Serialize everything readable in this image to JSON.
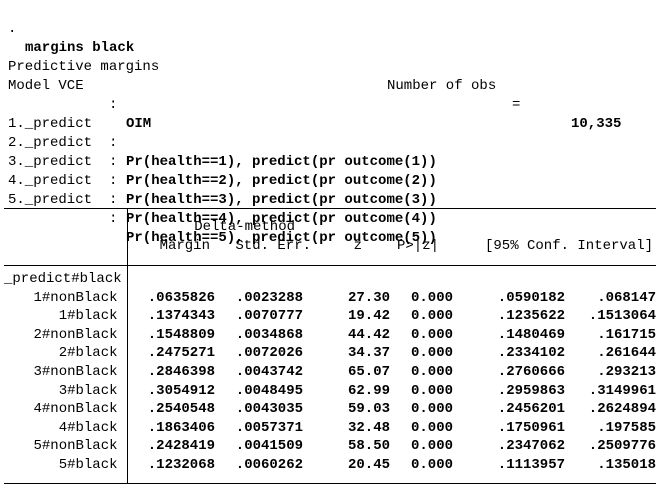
{
  "command": {
    "prompt": ".",
    "text": "margins black"
  },
  "header": {
    "title": "Predictive margins",
    "obs_label": "Number of obs",
    "equals": "=",
    "obs_value": "10,335",
    "vce_label": "Model VCE",
    "colon": ":",
    "vce_value": "OIM"
  },
  "predict_lines": [
    {
      "label": "1._predict",
      "colon": ":",
      "value": "Pr(health==1), predict(pr outcome(1))"
    },
    {
      "label": "2._predict",
      "colon": ":",
      "value": "Pr(health==2), predict(pr outcome(2))"
    },
    {
      "label": "3._predict",
      "colon": ":",
      "value": "Pr(health==3), predict(pr outcome(3))"
    },
    {
      "label": "4._predict",
      "colon": ":",
      "value": "Pr(health==4), predict(pr outcome(4))"
    },
    {
      "label": "5._predict",
      "colon": ":",
      "value": "Pr(health==5), predict(pr outcome(5))"
    }
  ],
  "table": {
    "group_header": "Delta-method",
    "columns": [
      "Margin",
      "Std. Err.",
      "z",
      "P>|z|",
      "[95% Conf. Interval]"
    ],
    "row_group_label": "_predict#black",
    "rows": [
      {
        "label": "1#nonBlack",
        "margin": ".0635826",
        "std_err": ".0023288",
        "z": "27.30",
        "p": "0.000",
        "ci_low": ".0590182",
        "ci_high": ".068147"
      },
      {
        "label": "1#black",
        "margin": ".1374343",
        "std_err": ".0070777",
        "z": "19.42",
        "p": "0.000",
        "ci_low": ".1235622",
        "ci_high": ".1513064"
      },
      {
        "label": "2#nonBlack",
        "margin": ".1548809",
        "std_err": ".0034868",
        "z": "44.42",
        "p": "0.000",
        "ci_low": ".1480469",
        "ci_high": ".161715"
      },
      {
        "label": "2#black",
        "margin": ".2475271",
        "std_err": ".0072026",
        "z": "34.37",
        "p": "0.000",
        "ci_low": ".2334102",
        "ci_high": ".261644"
      },
      {
        "label": "3#nonBlack",
        "margin": ".2846398",
        "std_err": ".0043742",
        "z": "65.07",
        "p": "0.000",
        "ci_low": ".2760666",
        "ci_high": ".293213"
      },
      {
        "label": "3#black",
        "margin": ".3054912",
        "std_err": ".0048495",
        "z": "62.99",
        "p": "0.000",
        "ci_low": ".2959863",
        "ci_high": ".3149961"
      },
      {
        "label": "4#nonBlack",
        "margin": ".2540548",
        "std_err": ".0043035",
        "z": "59.03",
        "p": "0.000",
        "ci_low": ".2456201",
        "ci_high": ".2624894"
      },
      {
        "label": "4#black",
        "margin": ".1863406",
        "std_err": ".0057371",
        "z": "32.48",
        "p": "0.000",
        "ci_low": ".1750961",
        "ci_high": ".197585"
      },
      {
        "label": "5#nonBlack",
        "margin": ".2428419",
        "std_err": ".0041509",
        "z": "58.50",
        "p": "0.000",
        "ci_low": ".2347062",
        "ci_high": ".2509776"
      },
      {
        "label": "5#black",
        "margin": ".1232068",
        "std_err": ".0060262",
        "z": "20.45",
        "p": "0.000",
        "ci_low": ".1113957",
        "ci_high": ".135018"
      }
    ]
  }
}
